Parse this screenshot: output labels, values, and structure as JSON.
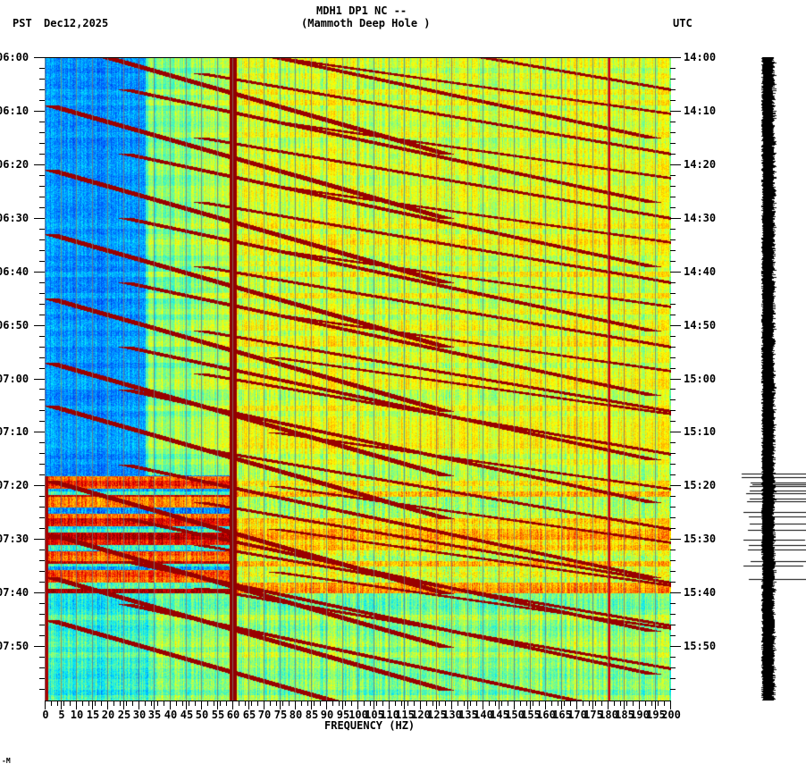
{
  "header": {
    "station_line": "MDH1 DP1 NC --",
    "station_name": "(Mammoth Deep Hole )",
    "left_timezone": "PST",
    "date": "Dec12,2025",
    "right_timezone": "UTC"
  },
  "footer_mark": "-M",
  "chart_data": {
    "type": "heatmap",
    "title": "MDH1 DP1 NC -- (Mammoth Deep Hole )",
    "subtitle": "Dec12,2025",
    "xlabel": "FREQUENCY (HZ)",
    "ylabel_left": "PST",
    "ylabel_right": "UTC",
    "xlim": [
      0,
      200
    ],
    "x_ticks": [
      "0",
      "5",
      "10",
      "15",
      "20",
      "25",
      "30",
      "35",
      "40",
      "45",
      "50",
      "55",
      "60",
      "65",
      "70",
      "75",
      "80",
      "85",
      "90",
      "95",
      "100",
      "105",
      "110",
      "115",
      "120",
      "125",
      "130",
      "135",
      "140",
      "145",
      "150",
      "155",
      "160",
      "165",
      "170",
      "175",
      "180",
      "185",
      "190",
      "195",
      "200"
    ],
    "y_ticks_left": [
      "06:00",
      "06:10",
      "06:20",
      "06:30",
      "06:40",
      "06:50",
      "07:00",
      "07:10",
      "07:20",
      "07:30",
      "07:40",
      "07:50"
    ],
    "y_ticks_right": [
      "14:00",
      "14:10",
      "14:20",
      "14:30",
      "14:40",
      "14:50",
      "15:00",
      "15:10",
      "15:20",
      "15:30",
      "15:40",
      "15:50"
    ],
    "time_range_minutes": [
      0,
      120
    ],
    "colormap": [
      "#0000ff",
      "#0080ff",
      "#00ffff",
      "#80ff80",
      "#ffff00",
      "#ff8000",
      "#ff0000",
      "#800000"
    ],
    "persistent_lines_hz": [
      60,
      180
    ],
    "grid_interval_hz": 5,
    "quiet_region": {
      "from_min": 0,
      "to_min": 78,
      "max_hz": 32
    },
    "noisy_band_minutes": [
      78,
      100
    ],
    "sweep_events_min": [
      0,
      12,
      24,
      36,
      48,
      60,
      68,
      82,
      92,
      100,
      108
    ],
    "seismogram_trace": "vertical trace at right with spikes between 15:18 and 15:40 UTC"
  }
}
